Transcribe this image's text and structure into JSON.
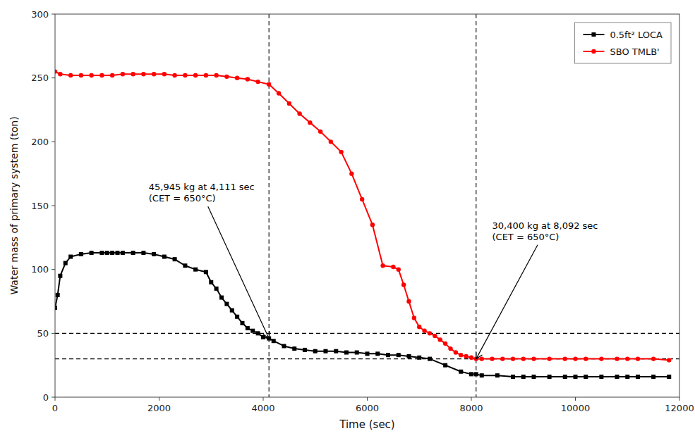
{
  "chart_data": {
    "type": "line",
    "title": "",
    "xlabel": "Time (sec)",
    "ylabel": "Water mass of primary system (ton)",
    "xlim": [
      0,
      12000
    ],
    "ylim": [
      0,
      300
    ],
    "xticks": [
      0,
      2000,
      4000,
      6000,
      8000,
      10000,
      12000
    ],
    "yticks": [
      0,
      50,
      100,
      150,
      200,
      250,
      300
    ],
    "grid": false,
    "legend": "upper right",
    "hlines": [
      50,
      30
    ],
    "vlines": [
      4111,
      8092
    ],
    "annotations": [
      {
        "text": "45,945 kg at 4,111 sec\n(CET = 650°C)",
        "xy": [
          4111,
          46
        ],
        "xytext": [
          1800,
          160
        ]
      },
      {
        "text": "30,400 kg at 8,092 sec\n(CET = 650°C)",
        "xy": [
          8092,
          30
        ],
        "xytext": [
          8400,
          130
        ]
      }
    ],
    "series": [
      {
        "name": "0.5ft² LOCA",
        "color": "#000000",
        "marker": "square",
        "x": [
          0,
          50,
          100,
          200,
          300,
          500,
          700,
          900,
          1000,
          1100,
          1200,
          1300,
          1500,
          1700,
          1900,
          2100,
          2300,
          2500,
          2700,
          2900,
          3000,
          3100,
          3200,
          3300,
          3400,
          3500,
          3600,
          3700,
          3800,
          3900,
          4000,
          4111,
          4200,
          4400,
          4600,
          4800,
          5000,
          5200,
          5400,
          5600,
          5800,
          6000,
          6200,
          6400,
          6600,
          6800,
          7000,
          7200,
          7500,
          7800,
          8000,
          8092,
          8200,
          8500,
          8800,
          9000,
          9200,
          9500,
          9800,
          10000,
          10200,
          10500,
          10800,
          11000,
          11200,
          11500,
          11800
        ],
        "values": [
          70,
          80,
          95,
          105,
          110,
          112,
          113,
          113,
          113,
          113,
          113,
          113,
          113,
          113,
          112,
          110,
          108,
          103,
          100,
          98,
          90,
          85,
          78,
          73,
          68,
          63,
          58,
          54,
          52,
          50,
          47,
          46,
          44,
          40,
          38,
          37,
          36,
          36,
          36,
          35,
          35,
          34,
          34,
          33,
          33,
          32,
          31,
          30,
          25,
          20,
          18,
          18,
          17,
          17,
          16,
          16,
          16,
          16,
          16,
          16,
          16,
          16,
          16,
          16,
          16,
          16,
          16
        ]
      },
      {
        "name": "SBO TMLB'",
        "color": "#ff0000",
        "marker": "circle",
        "x": [
          0,
          100,
          300,
          500,
          700,
          900,
          1100,
          1300,
          1500,
          1700,
          1900,
          2100,
          2300,
          2500,
          2700,
          2900,
          3100,
          3300,
          3500,
          3700,
          3900,
          4111,
          4300,
          4500,
          4700,
          4900,
          5100,
          5300,
          5500,
          5700,
          5900,
          6100,
          6300,
          6500,
          6600,
          6700,
          6800,
          6900,
          7000,
          7100,
          7200,
          7300,
          7400,
          7500,
          7600,
          7700,
          7800,
          7900,
          8000,
          8092,
          8200,
          8400,
          8600,
          8800,
          9000,
          9200,
          9500,
          9800,
          10000,
          10200,
          10500,
          10800,
          11000,
          11200,
          11500,
          11800
        ],
        "values": [
          255,
          253,
          252,
          252,
          252,
          252,
          252,
          253,
          253,
          253,
          253,
          253,
          252,
          252,
          252,
          252,
          252,
          251,
          250,
          249,
          247,
          245,
          238,
          230,
          222,
          215,
          208,
          200,
          192,
          175,
          155,
          135,
          103,
          102,
          100,
          88,
          75,
          62,
          55,
          52,
          50,
          48,
          45,
          42,
          38,
          35,
          33,
          32,
          31,
          30,
          30,
          30,
          30,
          30,
          30,
          30,
          30,
          30,
          30,
          30,
          30,
          30,
          30,
          30,
          30,
          29
        ]
      }
    ]
  }
}
